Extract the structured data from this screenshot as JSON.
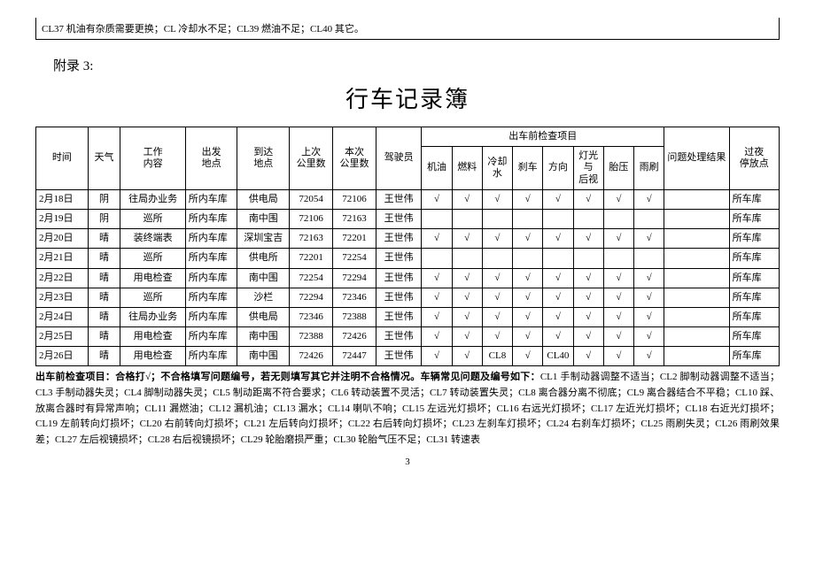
{
  "top_note": "CL37 机油有杂质需要更换；CL 冷却水不足；CL39 燃油不足；CL40 其它。",
  "appendix_label": "附录 3:",
  "title": "行车记录簿",
  "headers": {
    "date": "时间",
    "weather": "天气",
    "work": "工作\n内容",
    "depart": "出发\n地点",
    "arrive": "到达\n地点",
    "last_km": "上次\n公里数",
    "this_km": "本次\n公里数",
    "driver": "驾驶员",
    "check_group": "出车前检查项目",
    "check": [
      "机油",
      "燃料",
      "冷却水",
      "刹车",
      "方向",
      "灯光与\n后视",
      "胎压",
      "雨刷"
    ],
    "result": "问题处理结果",
    "park": "过夜\n停放点"
  },
  "rows": [
    {
      "date": "2月18日",
      "weather": "阴",
      "work": "往局办业务",
      "depart": "所内车库",
      "arrive": "供电局",
      "last": "72054",
      "curr": "72106",
      "driver": "王世伟",
      "chk": [
        "√",
        "√",
        "√",
        "√",
        "√",
        "√",
        "√",
        "√"
      ],
      "result": "",
      "park": "所车库"
    },
    {
      "date": "2月19日",
      "weather": "阴",
      "work": "巡所",
      "depart": "所内车库",
      "arrive": "南中围",
      "last": "72106",
      "curr": "72163",
      "driver": "王世伟",
      "chk": [
        "",
        "",
        "",
        "",
        "",
        "",
        "",
        ""
      ],
      "result": "",
      "park": "所车库"
    },
    {
      "date": "2月20日",
      "weather": "晴",
      "work": "装终端表",
      "depart": "所内车库",
      "arrive": "深圳宝吉",
      "last": "72163",
      "curr": "72201",
      "driver": "王世伟",
      "chk": [
        "√",
        "√",
        "√",
        "√",
        "√",
        "√",
        "√",
        "√"
      ],
      "result": "",
      "park": "所车库"
    },
    {
      "date": "2月21日",
      "weather": "晴",
      "work": "巡所",
      "depart": "所内车库",
      "arrive": "供电所",
      "last": "72201",
      "curr": "72254",
      "driver": "王世伟",
      "chk": [
        "",
        "",
        "",
        "",
        "",
        "",
        "",
        ""
      ],
      "result": "",
      "park": "所车库"
    },
    {
      "date": "2月22日",
      "weather": "晴",
      "work": "用电检查",
      "depart": "所内车库",
      "arrive": "南中围",
      "last": "72254",
      "curr": "72294",
      "driver": "王世伟",
      "chk": [
        "√",
        "√",
        "√",
        "√",
        "√",
        "√",
        "√",
        "√"
      ],
      "result": "",
      "park": "所车库"
    },
    {
      "date": "2月23日",
      "weather": "晴",
      "work": "巡所",
      "depart": "所内车库",
      "arrive": "沙栏",
      "last": "72294",
      "curr": "72346",
      "driver": "王世伟",
      "chk": [
        "√",
        "√",
        "√",
        "√",
        "√",
        "√",
        "√",
        "√"
      ],
      "result": "",
      "park": "所车库"
    },
    {
      "date": "2月24日",
      "weather": "晴",
      "work": "往局办业务",
      "depart": "所内车库",
      "arrive": "供电局",
      "last": "72346",
      "curr": "72388",
      "driver": "王世伟",
      "chk": [
        "√",
        "√",
        "√",
        "√",
        "√",
        "√",
        "√",
        "√"
      ],
      "result": "",
      "park": "所车库"
    },
    {
      "date": "2月25日",
      "weather": "晴",
      "work": "用电检查",
      "depart": "所内车库",
      "arrive": "南中围",
      "last": "72388",
      "curr": "72426",
      "driver": "王世伟",
      "chk": [
        "√",
        "√",
        "√",
        "√",
        "√",
        "√",
        "√",
        "√"
      ],
      "result": "",
      "park": "所车库"
    },
    {
      "date": "2月26日",
      "weather": "晴",
      "work": "用电检查",
      "depart": "所内车库",
      "arrive": "南中围",
      "last": "72426",
      "curr": "72447",
      "driver": "王世伟",
      "chk": [
        "√",
        "√",
        "CL8",
        "√",
        "CL40",
        "√",
        "√",
        "√"
      ],
      "result": "",
      "park": "所车库"
    }
  ],
  "footnote_lead": "出车前检查项目：合格打√；不合格填写问题编号，若无则填写其它并注明不合格情况。车辆常见问题及编号如下：",
  "footnote_rest": "CL1 手制动器调整不适当；CL2 脚制动器调整不适当；CL3 手制动器失灵；CL4 脚制动器失灵；CL5 制动距离不符合要求；CL6 转动装置不灵活；CL7 转动装置失灵；CL8 离合器分离不彻底；CL9 离合器结合不平稳；CL10 踩、放离合器时有异常声响；CL11 漏燃油；CL12 漏机油；CL13 漏水；CL14 喇叭不响；CL15 左远光灯损坏；CL16 右远光灯损坏；CL17 左近光灯损坏；CL18 右近光灯损坏；CL19 左前转向灯损坏；CL20 右前转向灯损坏；CL21 左后转向灯损坏；CL22 右后转向灯损坏；CL23 左刹车灯损坏；CL24 右刹车灯损坏；CL25 雨刷失灵；CL26 雨刷效果差；CL27 左后视镜损坏；CL28 右后视镜损坏；CL29 轮胎磨损严重；CL30 轮胎气压不足；CL31 转速表",
  "page_number": "3"
}
